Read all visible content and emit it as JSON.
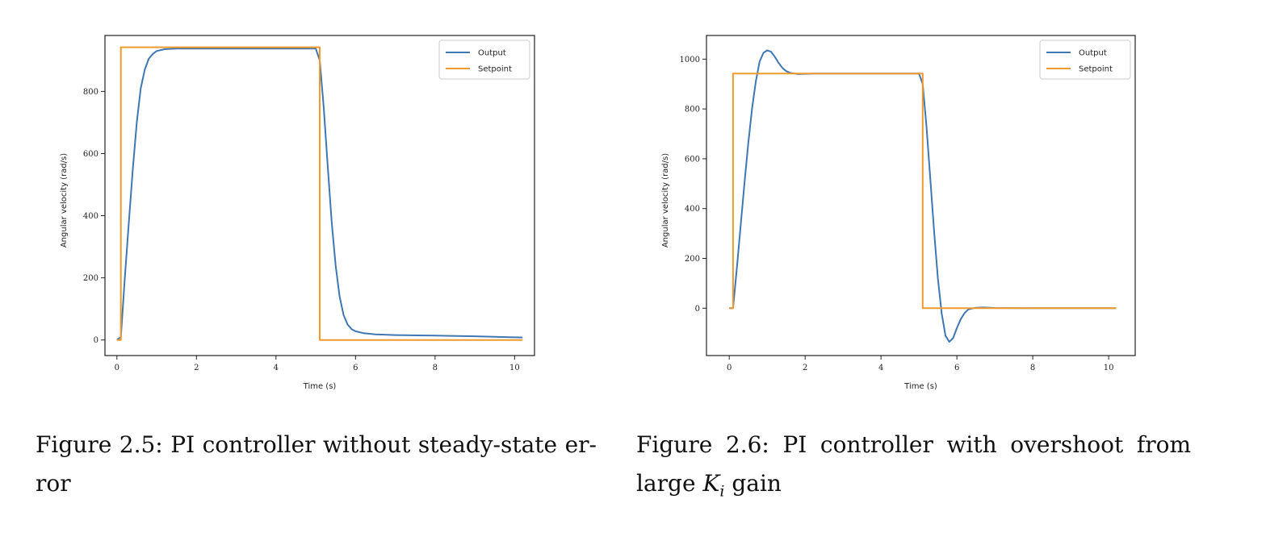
{
  "chart_data": [
    {
      "type": "line",
      "title": "",
      "xlabel": "Time (s)",
      "ylabel": "Angular velocity (rad/s)",
      "xlim": [
        -0.3,
        10.5
      ],
      "ylim": [
        -50,
        980
      ],
      "xticks": [
        0,
        2,
        4,
        6,
        8,
        10
      ],
      "yticks": [
        0,
        200,
        400,
        600,
        800
      ],
      "legend": "top-right",
      "colors": {
        "Output": "#3f77b3",
        "Setpoint": "#ef9a2c"
      },
      "series": [
        {
          "name": "Output",
          "x": [
            0,
            0.1,
            0.2,
            0.3,
            0.4,
            0.5,
            0.6,
            0.7,
            0.8,
            0.9,
            1.0,
            1.2,
            1.5,
            2.0,
            3.0,
            4.0,
            5.0,
            5.1,
            5.2,
            5.3,
            5.4,
            5.5,
            5.6,
            5.7,
            5.8,
            5.9,
            6.0,
            6.2,
            6.5,
            7.0,
            8.0,
            9.0,
            10.2
          ],
          "y": [
            0,
            10,
            200,
            380,
            550,
            700,
            810,
            870,
            905,
            920,
            930,
            936,
            938,
            938,
            938,
            938,
            938,
            900,
            750,
            560,
            380,
            240,
            140,
            80,
            50,
            35,
            28,
            22,
            18,
            16,
            14,
            12,
            8
          ]
        },
        {
          "name": "Setpoint",
          "x": [
            0,
            0.1,
            0.1,
            5.1,
            5.1,
            10.2
          ],
          "y": [
            0,
            0,
            942,
            942,
            0,
            0
          ]
        }
      ]
    },
    {
      "type": "line",
      "title": "",
      "xlabel": "Time (s)",
      "ylabel": "Angular velocity (rad/s)",
      "xlim": [
        -0.6,
        10.7
      ],
      "ylim": [
        -190,
        1095
      ],
      "xticks": [
        0,
        2,
        4,
        6,
        8,
        10
      ],
      "yticks": [
        0,
        200,
        400,
        600,
        800,
        1000
      ],
      "legend": "top-right",
      "colors": {
        "Output": "#3f77b3",
        "Setpoint": "#ef9a2c"
      },
      "series": [
        {
          "name": "Output",
          "x": [
            0,
            0.1,
            0.2,
            0.3,
            0.4,
            0.5,
            0.6,
            0.7,
            0.8,
            0.9,
            1.0,
            1.1,
            1.2,
            1.3,
            1.4,
            1.5,
            1.6,
            1.8,
            2.0,
            2.3,
            3.0,
            5.0,
            5.1,
            5.2,
            5.3,
            5.4,
            5.5,
            5.6,
            5.7,
            5.8,
            5.9,
            6.0,
            6.1,
            6.2,
            6.3,
            6.5,
            6.7,
            7.0,
            8.0,
            10.2
          ],
          "y": [
            0,
            0,
            160,
            330,
            500,
            660,
            800,
            910,
            990,
            1025,
            1035,
            1030,
            1010,
            985,
            965,
            952,
            945,
            940,
            941,
            942,
            942,
            942,
            900,
            730,
            520,
            310,
            120,
            -20,
            -110,
            -135,
            -120,
            -80,
            -45,
            -20,
            -5,
            2,
            3,
            1,
            0,
            0
          ]
        },
        {
          "name": "Setpoint",
          "x": [
            0,
            0.1,
            0.1,
            5.1,
            5.1,
            10.2
          ],
          "y": [
            0,
            0,
            942,
            942,
            0,
            0
          ]
        }
      ]
    }
  ],
  "captions": {
    "left": "Figure 2.5: PI controller without steady-state er- ror",
    "right_prefix": "Figure 2.6: PI controller with overshoot from large ",
    "right_math_base": "K",
    "right_math_sub": "i",
    "right_suffix": " gain"
  }
}
